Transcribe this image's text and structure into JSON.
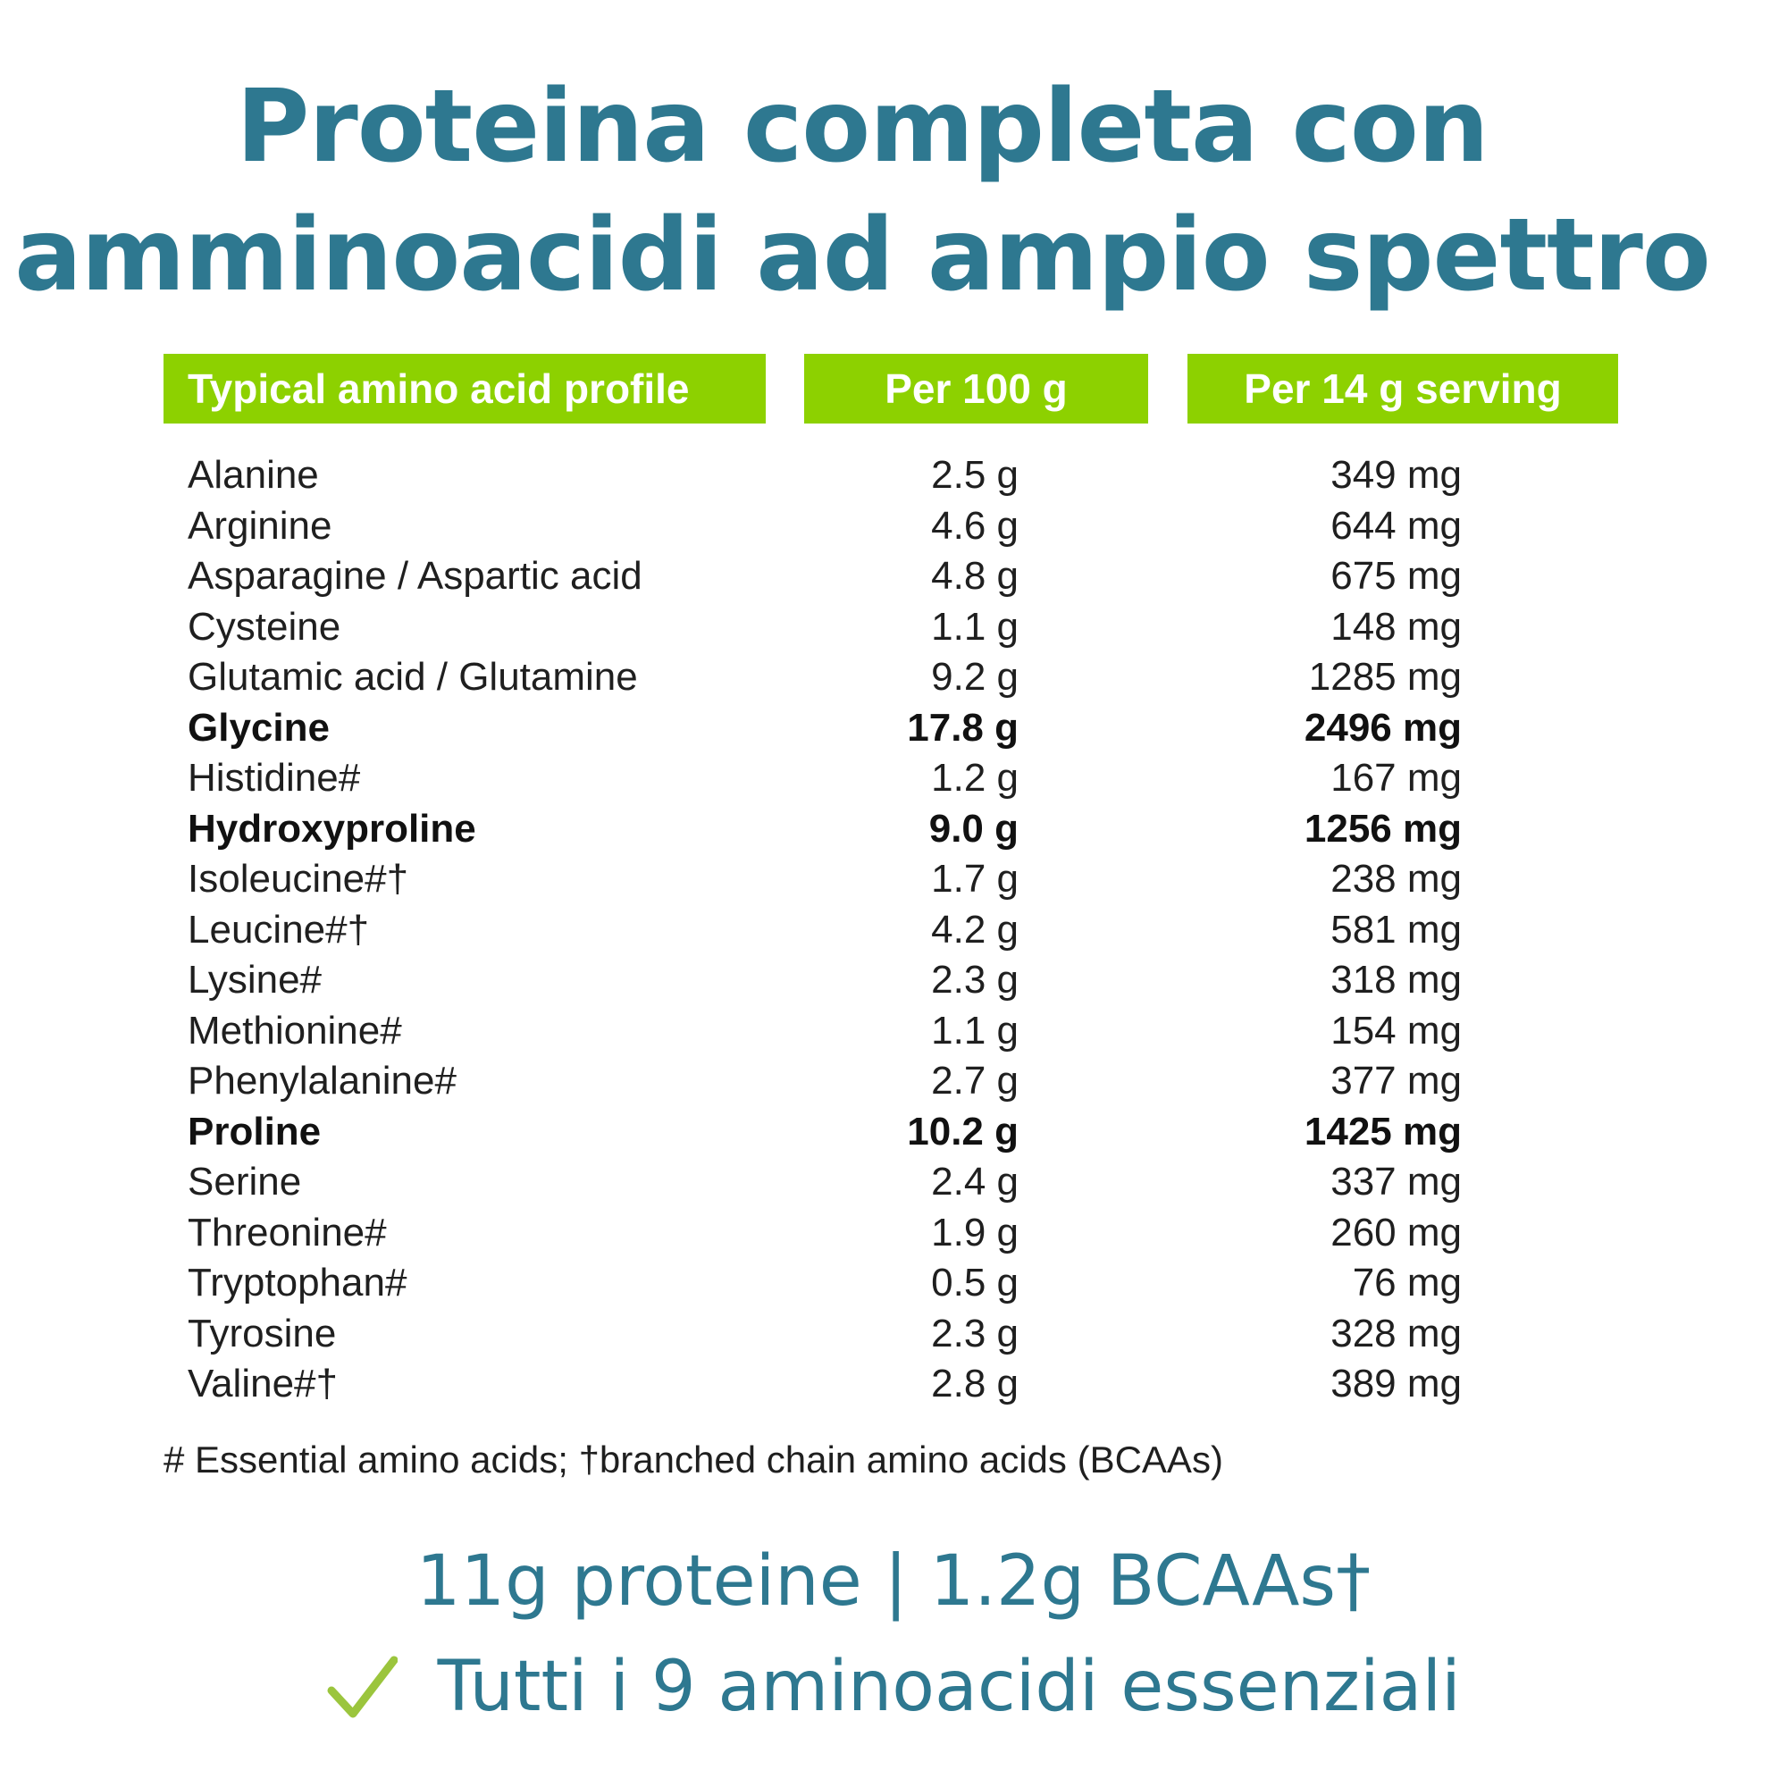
{
  "title": {
    "line1": "Proteina completa con",
    "line2": "amminoacidi ad ampio spettro"
  },
  "table": {
    "headers": [
      "Typical amino acid profile",
      "Per 100 g",
      "Per 14 g serving"
    ],
    "rows": [
      {
        "name": "Alanine",
        "per100": "2.5 g",
        "per14": "349 mg",
        "bold": false
      },
      {
        "name": "Arginine",
        "per100": "4.6 g",
        "per14": "644 mg",
        "bold": false
      },
      {
        "name": "Asparagine / Aspartic acid",
        "per100": "4.8 g",
        "per14": "675 mg",
        "bold": false
      },
      {
        "name": "Cysteine",
        "per100": "1.1 g",
        "per14": "148 mg",
        "bold": false
      },
      {
        "name": "Glutamic acid / Glutamine",
        "per100": "9.2 g",
        "per14": "1285 mg",
        "bold": false
      },
      {
        "name": "Glycine",
        "per100": "17.8 g",
        "per14": "2496 mg",
        "bold": true
      },
      {
        "name": "Histidine#",
        "per100": "1.2 g",
        "per14": "167 mg",
        "bold": false
      },
      {
        "name": "Hydroxyproline",
        "per100": "9.0 g",
        "per14": "1256 mg",
        "bold": true
      },
      {
        "name": "Isoleucine#†",
        "per100": "1.7 g",
        "per14": "238 mg",
        "bold": false
      },
      {
        "name": "Leucine#†",
        "per100": "4.2 g",
        "per14": "581 mg",
        "bold": false
      },
      {
        "name": "Lysine#",
        "per100": "2.3 g",
        "per14": "318 mg",
        "bold": false
      },
      {
        "name": "Methionine#",
        "per100": "1.1 g",
        "per14": "154 mg",
        "bold": false
      },
      {
        "name": "Phenylalanine#",
        "per100": "2.7 g",
        "per14": "377 mg",
        "bold": false
      },
      {
        "name": "Proline",
        "per100": "10.2 g",
        "per14": "1425 mg",
        "bold": true
      },
      {
        "name": "Serine",
        "per100": "2.4 g",
        "per14": "337 mg",
        "bold": false
      },
      {
        "name": "Threonine#",
        "per100": "1.9 g",
        "per14": "260 mg",
        "bold": false
      },
      {
        "name": "Tryptophan#",
        "per100": "0.5 g",
        "per14": "76 mg",
        "bold": false
      },
      {
        "name": "Tyrosine",
        "per100": "2.3 g",
        "per14": "328 mg",
        "bold": false
      },
      {
        "name": "Valine#†",
        "per100": "2.8 g",
        "per14": "389 mg",
        "bold": false
      }
    ],
    "footnote": "# Essential amino acids; †branched chain amino acids (BCAAs)"
  },
  "summary": {
    "protein": "11g proteine | 1.2g BCAAs†",
    "essential": "Tutti i 9 aminoacidi essenziali"
  },
  "colors": {
    "title": "#2e7890",
    "header_bg": "#8dd100",
    "check": "#9bc53d"
  },
  "icons": {
    "check": "check-icon"
  }
}
